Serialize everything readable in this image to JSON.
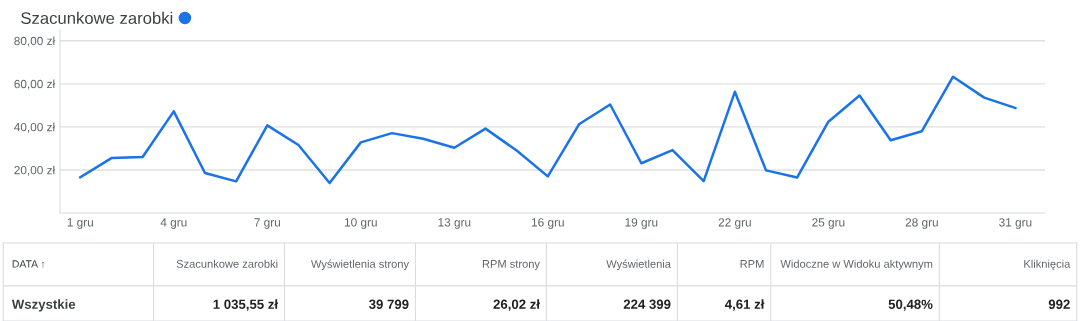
{
  "chart_data": [
    {
      "type": "line",
      "categories": [
        "1 gru",
        null,
        null,
        "4 gru",
        null,
        null,
        "7 gru",
        null,
        null,
        "10 gru",
        null,
        null,
        "13 gru",
        null,
        null,
        "16 gru",
        null,
        null,
        "19 gru",
        null,
        null,
        "22 gru",
        null,
        null,
        "25 gru",
        null,
        null,
        "28 gru",
        null,
        null,
        "31 gru"
      ],
      "series": [
        {
          "name": "Szacunkowe zarobki",
          "color": "#1a73e8",
          "values": [
            16.6,
            25.5,
            26.0,
            47.2,
            18.6,
            14.7,
            40.7,
            31.6,
            13.9,
            32.8,
            37.1,
            34.5,
            30.3,
            39.2,
            29.0,
            17.0,
            41.2,
            50.4,
            23.1,
            29.2,
            14.8,
            56.3,
            19.8,
            16.5,
            42.4,
            54.6,
            33.8,
            38.0,
            63.3,
            53.6,
            48.8
          ]
        }
      ],
      "ylim": [
        0,
        85
      ],
      "yticks": [
        {
          "value": 20,
          "label": "20,00 zł"
        },
        {
          "value": 40,
          "label": "40,00 zł"
        },
        {
          "value": 60,
          "label": "60,00 zł"
        },
        {
          "value": 80,
          "label": "80,00 zł"
        }
      ],
      "grid": "y",
      "legend": "top left",
      "marker": "none",
      "line_style": "solid"
    },
    {
      "type": "other",
      "annotations": [
        "DATA ↑",
        "Szacunkowe zarobki",
        "Wyświetlenia strony",
        "RPM strony",
        "Wyświetlenia",
        "RPM",
        "Widoczne w Widoku aktywnym",
        "Kliknięcia",
        "Wszystkie",
        "1 035,55 zł",
        "39 799",
        "26,02 zł",
        "224 399",
        "4,61 zł",
        "50,48%",
        "992"
      ]
    }
  ]
}
